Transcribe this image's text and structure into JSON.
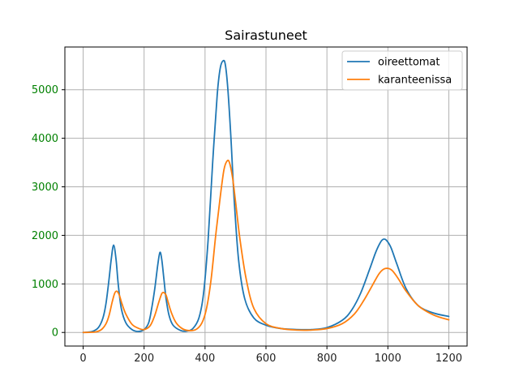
{
  "chart_data": {
    "type": "line",
    "title": "Sairastuneet",
    "xlabel": "",
    "ylabel": "",
    "xlim": [
      -60,
      1260
    ],
    "ylim": [
      -280,
      5880
    ],
    "xticks": [
      0,
      200,
      400,
      600,
      800,
      1000,
      1200
    ],
    "yticks": [
      0,
      1000,
      2000,
      3000,
      4000,
      5000
    ],
    "ytick_color": "#008000",
    "grid": true,
    "legend": "top-right",
    "series": [
      {
        "name": "oireettomat",
        "color": "#1f77b4",
        "x": [
          0,
          30,
          50,
          65,
          75,
          85,
          92,
          100,
          108,
          115,
          125,
          140,
          160,
          180,
          200,
          215,
          225,
          235,
          245,
          252,
          258,
          265,
          272,
          282,
          295,
          320,
          340,
          360,
          380,
          395,
          410,
          425,
          440,
          450,
          460,
          467,
          475,
          485,
          495,
          510,
          530,
          560,
          600,
          650,
          700,
          750,
          800,
          850,
          880,
          910,
          940,
          960,
          975,
          985,
          995,
          1010,
          1030,
          1060,
          1100,
          1150,
          1200
        ],
        "y": [
          0,
          20,
          100,
          300,
          600,
          1100,
          1500,
          1800,
          1500,
          1000,
          500,
          200,
          60,
          20,
          60,
          200,
          500,
          900,
          1400,
          1650,
          1500,
          1100,
          700,
          350,
          150,
          40,
          30,
          80,
          300,
          800,
          1900,
          3500,
          4900,
          5450,
          5600,
          5500,
          5000,
          4000,
          2800,
          1500,
          700,
          300,
          150,
          80,
          60,
          60,
          100,
          250,
          450,
          800,
          1300,
          1650,
          1850,
          1920,
          1900,
          1750,
          1400,
          900,
          550,
          400,
          330
        ]
      },
      {
        "name": "karanteenissa",
        "color": "#ff7f0e",
        "x": [
          0,
          40,
          60,
          75,
          85,
          95,
          103,
          110,
          118,
          128,
          140,
          160,
          180,
          200,
          220,
          235,
          248,
          258,
          265,
          272,
          280,
          290,
          305,
          325,
          345,
          370,
          390,
          405,
          420,
          435,
          450,
          462,
          472,
          480,
          490,
          500,
          515,
          535,
          560,
          600,
          650,
          700,
          750,
          800,
          850,
          890,
          920,
          950,
          970,
          985,
          1000,
          1015,
          1035,
          1060,
          1100,
          1150,
          1200
        ],
        "y": [
          0,
          10,
          60,
          180,
          350,
          620,
          800,
          850,
          780,
          580,
          380,
          170,
          90,
          60,
          140,
          350,
          620,
          800,
          820,
          770,
          600,
          400,
          200,
          80,
          40,
          60,
          200,
          500,
          1100,
          2000,
          2800,
          3350,
          3530,
          3500,
          3200,
          2700,
          1900,
          1100,
          500,
          180,
          80,
          50,
          50,
          80,
          180,
          380,
          650,
          980,
          1200,
          1300,
          1320,
          1270,
          1100,
          850,
          550,
          360,
          260
        ]
      }
    ]
  }
}
